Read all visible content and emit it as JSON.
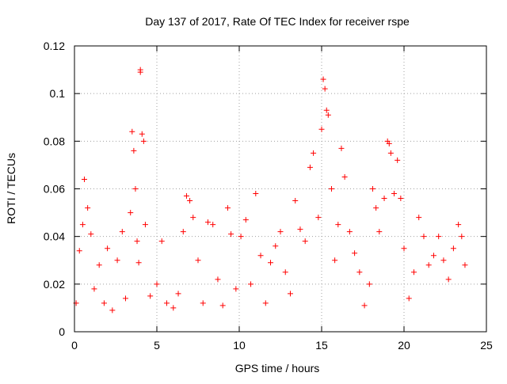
{
  "chart_data": {
    "type": "scatter",
    "title": "Day 137 of 2017, Rate Of TEC Index for receiver rspe",
    "xlabel": "GPS time / hours",
    "ylabel": "ROTI / TECUs",
    "xlim": [
      0,
      25
    ],
    "ylim": [
      0,
      0.12
    ],
    "x_ticks": [
      0,
      5,
      10,
      15,
      20,
      25
    ],
    "y_ticks": [
      0,
      0.02,
      0.04,
      0.06,
      0.08,
      0.1,
      0.12
    ],
    "x_tick_labels": [
      "0",
      "5",
      "10",
      "15",
      "20",
      "25"
    ],
    "y_tick_labels": [
      "0",
      "0.02",
      "0.04",
      "0.06",
      "0.08",
      "0.1",
      "0.12"
    ],
    "grid": true,
    "marker": "plus",
    "marker_color": "#ff0000",
    "series": [
      {
        "x": [
          0.1,
          0.3,
          0.5,
          0.6,
          0.8,
          1.0,
          1.2,
          1.5,
          1.8,
          2.0,
          2.3,
          2.6,
          2.9,
          3.1,
          3.4,
          3.5,
          3.6,
          3.7,
          3.8,
          3.9,
          4.0,
          4.0,
          4.1,
          4.2,
          4.3,
          4.6,
          5.0,
          5.3,
          5.6,
          6.0,
          6.3,
          6.6,
          6.8,
          7.0,
          7.2,
          7.5,
          7.8,
          8.1,
          8.4,
          8.7,
          9.0,
          9.3,
          9.5,
          9.8,
          10.1,
          10.4,
          10.7,
          11.0,
          11.3,
          11.6,
          11.9,
          12.2,
          12.5,
          12.8,
          13.1,
          13.4,
          13.7,
          14.0,
          14.3,
          14.5,
          14.8,
          15.0,
          15.1,
          15.2,
          15.3,
          15.4,
          15.6,
          15.8,
          16.0,
          16.2,
          16.4,
          16.7,
          17.0,
          17.3,
          17.6,
          17.9,
          18.1,
          18.3,
          18.5,
          18.8,
          19.0,
          19.1,
          19.2,
          19.4,
          19.6,
          19.8,
          20.0,
          20.3,
          20.6,
          20.9,
          21.2,
          21.5,
          21.8,
          22.1,
          22.4,
          22.7,
          23.0,
          23.3,
          23.5,
          23.7
        ],
        "y": [
          0.012,
          0.034,
          0.045,
          0.064,
          0.052,
          0.041,
          0.018,
          0.028,
          0.012,
          0.035,
          0.009,
          0.03,
          0.042,
          0.014,
          0.05,
          0.084,
          0.076,
          0.06,
          0.038,
          0.029,
          0.109,
          0.11,
          0.083,
          0.08,
          0.045,
          0.015,
          0.02,
          0.038,
          0.012,
          0.01,
          0.016,
          0.042,
          0.057,
          0.055,
          0.048,
          0.03,
          0.012,
          0.046,
          0.045,
          0.022,
          0.011,
          0.052,
          0.041,
          0.018,
          0.04,
          0.047,
          0.02,
          0.058,
          0.032,
          0.012,
          0.029,
          0.036,
          0.042,
          0.025,
          0.016,
          0.055,
          0.043,
          0.038,
          0.069,
          0.075,
          0.048,
          0.085,
          0.106,
          0.102,
          0.093,
          0.091,
          0.06,
          0.03,
          0.045,
          0.077,
          0.065,
          0.042,
          0.033,
          0.025,
          0.011,
          0.02,
          0.06,
          0.052,
          0.042,
          0.056,
          0.08,
          0.079,
          0.075,
          0.058,
          0.072,
          0.056,
          0.035,
          0.014,
          0.025,
          0.048,
          0.04,
          0.028,
          0.032,
          0.04,
          0.03,
          0.022,
          0.035,
          0.045,
          0.04,
          0.028
        ]
      }
    ]
  }
}
